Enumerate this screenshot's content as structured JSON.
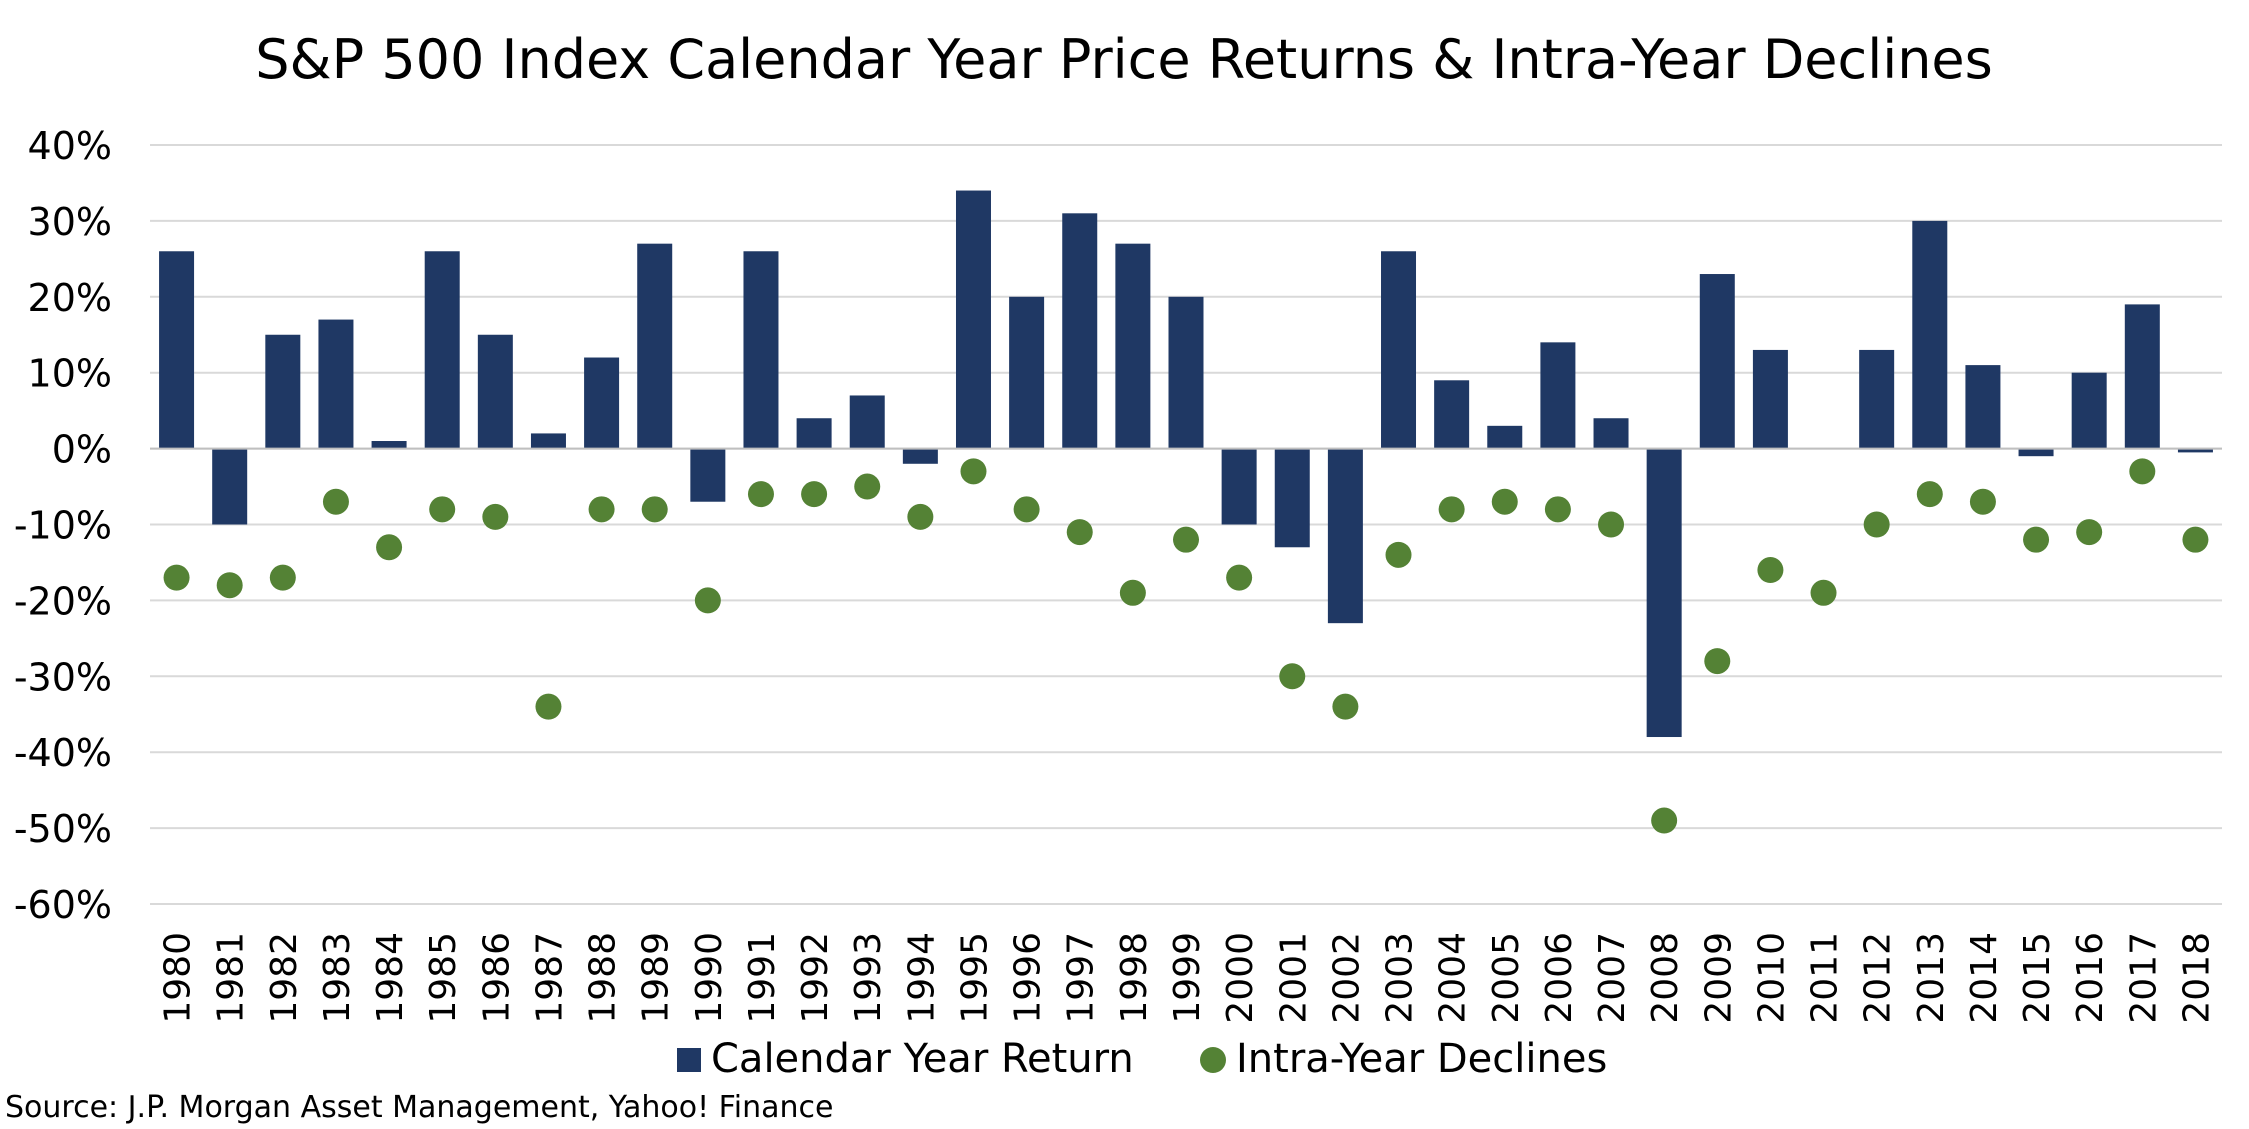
{
  "chart_data": {
    "type": "bar",
    "title": "S&P 500 Index Calendar Year Price Returns & Intra-Year Declines",
    "source": "Source: J.P. Morgan Asset Management, Yahoo! Finance",
    "xlabel": "",
    "ylabel": "",
    "ylim": [
      -60,
      40
    ],
    "yticks": [
      40,
      30,
      20,
      10,
      0,
      -10,
      -20,
      -30,
      -40,
      -50,
      -60
    ],
    "ytick_labels": [
      "40%",
      "30%",
      "20%",
      "10%",
      "0%",
      "-10%",
      "-20%",
      "-30%",
      "-40%",
      "-50%",
      "-60%"
    ],
    "grid": true,
    "legend_position": "bottom-center",
    "categories": [
      "1980",
      "1981",
      "1982",
      "1983",
      "1984",
      "1985",
      "1986",
      "1987",
      "1988",
      "1989",
      "1990",
      "1991",
      "1992",
      "1993",
      "1994",
      "1995",
      "1996",
      "1997",
      "1998",
      "1999",
      "2000",
      "2001",
      "2002",
      "2003",
      "2004",
      "2005",
      "2006",
      "2007",
      "2008",
      "2009",
      "2010",
      "2011",
      "2012",
      "2013",
      "2014",
      "2015",
      "2016",
      "2017",
      "2018"
    ],
    "series": [
      {
        "name": "Calendar Year Return",
        "kind": "bar",
        "color": "#1f3864",
        "values": [
          26,
          -10,
          15,
          17,
          1,
          26,
          15,
          2,
          12,
          27,
          -7,
          26,
          4,
          7,
          -2,
          34,
          20,
          31,
          27,
          20,
          -10,
          -13,
          -23,
          26,
          9,
          3,
          14,
          4,
          -38,
          23,
          13,
          0,
          13,
          30,
          11,
          -1,
          10,
          19,
          -0.5
        ]
      },
      {
        "name": "Intra-Year Declines",
        "kind": "scatter",
        "color": "#548235",
        "values": [
          -17,
          -18,
          -17,
          -7,
          -13,
          -8,
          -9,
          -34,
          -8,
          -8,
          -20,
          -6,
          -6,
          -5,
          -9,
          -3,
          -8,
          -11,
          -19,
          -12,
          -17,
          -30,
          -34,
          -14,
          -8,
          -7,
          -8,
          -10,
          -49,
          -28,
          -16,
          -19,
          -10,
          -6,
          -7,
          -12,
          -11,
          -3,
          -12
        ]
      }
    ]
  }
}
